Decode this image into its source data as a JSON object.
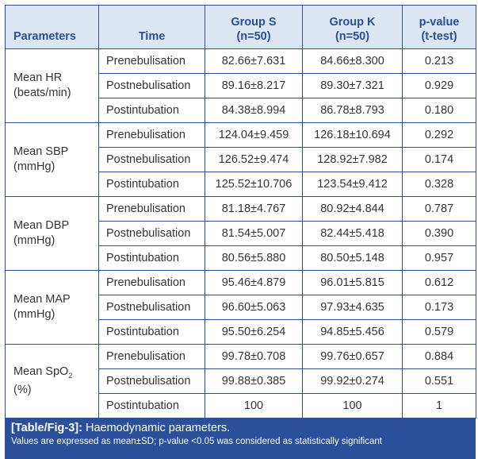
{
  "headers": [
    "Parameters",
    "Time",
    "Group S",
    "(n=50)",
    "Group K",
    "(n=50)",
    "p-value",
    "(t-test)"
  ],
  "groups": [
    {
      "name": "Mean HR",
      "unit": "(beats/min)",
      "rows": [
        [
          "Prenebulisation",
          "82.66±7.631",
          "84.66±8.300",
          "0.213"
        ],
        [
          "Postnebulisation",
          "89.16±8.217",
          "89.30±7.321",
          "0.929"
        ],
        [
          "Postintubation",
          "84.38±8.994",
          "86.78±8.793",
          "0.180"
        ]
      ]
    },
    {
      "name": "Mean SBP",
      "unit": "(mmHg)",
      "rows": [
        [
          "Prenebulisation",
          "124.04±9.459",
          "126.18±10.694",
          "0.292"
        ],
        [
          "Postnebulisation",
          "126.52±9.474",
          "128.92±7.982",
          "0.174"
        ],
        [
          "Postintubation",
          "125.52±10.706",
          "123.54±9.412",
          "0.328"
        ]
      ]
    },
    {
      "name": "Mean DBP",
      "unit": "(mmHg)",
      "rows": [
        [
          "Prenebulisation",
          "81.18±4.767",
          "80.92±4.844",
          "0.787"
        ],
        [
          "Postnebulisation",
          "81.54±5.007",
          "82.44±5.418",
          "0.390"
        ],
        [
          "Postintubation",
          "80.56±5.880",
          "80.50±5.148",
          "0.957"
        ]
      ]
    },
    {
      "name": "Mean MAP",
      "unit": "(mmHg)",
      "rows": [
        [
          "Prenebulisation",
          "95.46±4.879",
          "96.01±5.815",
          "0.612"
        ],
        [
          "Postnebulisation",
          "96.60±5.063",
          "97.93±4.635",
          "0.173"
        ],
        [
          "Postintubation",
          "95.50±6.254",
          "94.85±5.456",
          "0.579"
        ]
      ]
    },
    {
      "name": "Mean SpO",
      "sub": "2",
      "unit": "(%)",
      "rows": [
        [
          "Prenebulisation",
          "99.78±0.708",
          "99.76±0.657",
          "0.884"
        ],
        [
          "Postnebulisation",
          "99.88±0.385",
          "99.92±0.274",
          "0.551"
        ],
        [
          "Postintubation",
          "100",
          "100",
          "1"
        ]
      ]
    }
  ],
  "caption": {
    "label": "[Table/Fig-3]:",
    "title": "Haemodynamic parameters.",
    "note": "Values are expressed as mean±SD; p-value <0.05 was considered as statistically significant"
  }
}
